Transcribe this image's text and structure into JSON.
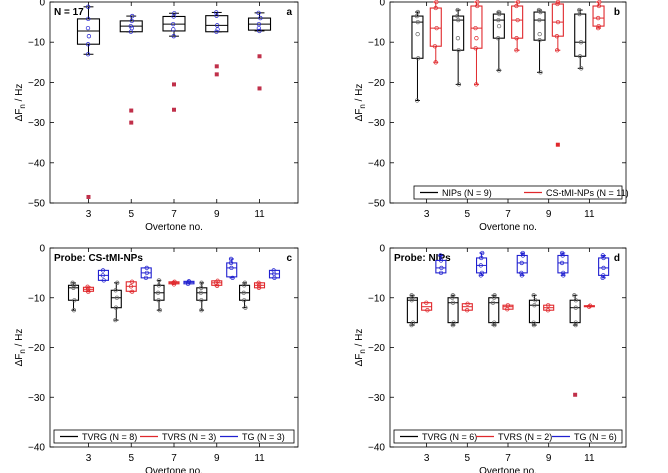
{
  "chart_data": [
    {
      "id": "a",
      "type": "box",
      "panel_label": "a",
      "annotation": "N = 17",
      "title": "",
      "xlabel": "Overtone no.",
      "ylabel_main": "ΔF",
      "ylabel_sub": "n",
      "ylabel_unit": " / Hz",
      "ylim": [
        -50,
        0
      ],
      "yticks": [
        0,
        -10,
        -20,
        -30,
        -40,
        -50
      ],
      "xticks": [
        "3",
        "5",
        "7",
        "9",
        "11"
      ],
      "legend": [],
      "series": [
        {
          "name": "all",
          "color": "#000000",
          "point_color": "#2020d0",
          "boxes": [
            {
              "x": 3,
              "q1": -10.5,
              "median": -7.2,
              "q3": -4.2,
              "wlo": -13,
              "whi": -1.2,
              "outliers": [
                -48.5
              ],
              "points": [
                -1.2,
                -4.2,
                -6.5,
                -8.5,
                -10.5,
                -13
              ]
            },
            {
              "x": 5,
              "q1": -7.4,
              "median": -6,
              "q3": -4.7,
              "wlo": -7.4,
              "whi": -3.5,
              "outliers": [
                -27,
                -30
              ],
              "points": [
                -3.5,
                -4.7,
                -6,
                -6.5,
                -7.4
              ]
            },
            {
              "x": 7,
              "q1": -7.2,
              "median": -5.5,
              "q3": -3.6,
              "wlo": -8.5,
              "whi": -2.8,
              "outliers": [
                -20.5,
                -26.8
              ],
              "points": [
                -2.8,
                -3.6,
                -5.5,
                -6.8,
                -8.5
              ]
            },
            {
              "x": 9,
              "q1": -7.4,
              "median": -5.8,
              "q3": -3.4,
              "wlo": -7.4,
              "whi": -2.6,
              "outliers": [
                -16,
                -18
              ],
              "points": [
                -2.6,
                -3.4,
                -5.8,
                -6.8,
                -7.4
              ]
            },
            {
              "x": 11,
              "q1": -7,
              "median": -5.5,
              "q3": -4,
              "wlo": -7.2,
              "whi": -2.7,
              "outliers": [
                -13.5,
                -21.5
              ],
              "points": [
                -2.7,
                -4,
                -5.5,
                -6.5,
                -7.2
              ]
            }
          ]
        }
      ]
    },
    {
      "id": "b",
      "type": "box",
      "panel_label": "b",
      "annotation": "",
      "title": "",
      "xlabel": "Overtone no.",
      "ylabel_main": "ΔF",
      "ylabel_sub": "n",
      "ylabel_unit": " / Hz",
      "ylim": [
        -50,
        0
      ],
      "yticks": [
        0,
        -10,
        -20,
        -30,
        -40,
        -50
      ],
      "xticks": [
        "3",
        "5",
        "7",
        "9",
        "11"
      ],
      "legend": [
        {
          "label": "NIPs (N = 9)",
          "color": "#000000"
        },
        {
          "label": "CS-tMI-NPs (N = 11)",
          "color": "#e0282c"
        }
      ],
      "series": [
        {
          "name": "NIPs",
          "color": "#000000",
          "boxes": [
            {
              "x": 2.55,
              "q1": -14,
              "median": -5,
              "q3": -3.5,
              "wlo": -24.5,
              "whi": -2.5,
              "outliers": [],
              "points": [
                -2.5,
                -3.5,
                -5,
                -8,
                -14,
                -24.5
              ]
            },
            {
              "x": 4.55,
              "q1": -12,
              "median": -4.5,
              "q3": -3.5,
              "wlo": -20.5,
              "whi": -2,
              "outliers": [],
              "points": [
                -2,
                -3.5,
                -4.5,
                -9,
                -12,
                -20.5
              ]
            },
            {
              "x": 6.55,
              "q1": -9,
              "median": -4.5,
              "q3": -3,
              "wlo": -17,
              "whi": -2.5,
              "outliers": [],
              "points": [
                -2.5,
                -3,
                -4.5,
                -6,
                -9,
                -17
              ]
            },
            {
              "x": 8.55,
              "q1": -9.5,
              "median": -4.5,
              "q3": -2.5,
              "wlo": -17.5,
              "whi": -2,
              "outliers": [],
              "points": [
                -2,
                -2.5,
                -4.5,
                -8,
                -9.5,
                -17.5
              ]
            },
            {
              "x": 10.55,
              "q1": -13.5,
              "median": -10,
              "q3": -3,
              "wlo": -16.5,
              "whi": -2,
              "outliers": [],
              "points": [
                -2,
                -3,
                -10,
                -13.5,
                -16.5
              ]
            }
          ]
        },
        {
          "name": "CS-tMI-NPs",
          "color": "#e0282c",
          "boxes": [
            {
              "x": 3.45,
              "q1": -11,
              "median": -6.5,
              "q3": -1.5,
              "wlo": -15,
              "whi": 0,
              "outliers": [],
              "points": [
                0,
                -1.5,
                -6.5,
                -11,
                -15
              ]
            },
            {
              "x": 5.45,
              "q1": -11.5,
              "median": -6.5,
              "q3": -1,
              "wlo": -20.5,
              "whi": 0,
              "outliers": [],
              "points": [
                0,
                -1,
                -6.5,
                -9,
                -11.5,
                -20.5
              ]
            },
            {
              "x": 7.45,
              "q1": -9,
              "median": -4.5,
              "q3": -1,
              "wlo": -12,
              "whi": 0,
              "outliers": [],
              "points": [
                0,
                -1,
                -4.5,
                -9,
                -12
              ]
            },
            {
              "x": 9.45,
              "q1": -8.5,
              "median": -5,
              "q3": -0.5,
              "wlo": -12,
              "whi": 0,
              "outliers": [
                -35.5
              ],
              "points": [
                0,
                -0.5,
                -5,
                -8.5,
                -12
              ]
            },
            {
              "x": 11.45,
              "q1": -6,
              "median": -4,
              "q3": -1,
              "wlo": -6.5,
              "whi": 0,
              "outliers": [],
              "points": [
                0,
                -1,
                -4,
                -6,
                -6.5
              ]
            }
          ]
        }
      ]
    },
    {
      "id": "c",
      "type": "box",
      "panel_label": "c",
      "annotation": "Probe: CS-tMI-NPs",
      "title": "",
      "xlabel": "Overtone no.",
      "ylabel_main": "ΔF",
      "ylabel_sub": "n",
      "ylabel_unit": " / Hz",
      "ylim": [
        -40,
        0
      ],
      "yticks": [
        0,
        -10,
        -20,
        -30,
        -40
      ],
      "xticks": [
        "3",
        "5",
        "7",
        "9",
        "11"
      ],
      "legend": [
        {
          "label": "TVRG (N = 8)",
          "color": "#000000"
        },
        {
          "label": "TVRS (N = 3)",
          "color": "#e0282c"
        },
        {
          "label": "TG (N = 3)",
          "color": "#2020d0"
        }
      ],
      "series": [
        {
          "name": "TVRG",
          "color": "#000000",
          "boxes": [
            {
              "x": 2.3,
              "q1": -10.5,
              "median": -8,
              "q3": -7.5,
              "wlo": -12.5,
              "whi": -7,
              "outliers": [],
              "points": [
                -7,
                -7.5,
                -8,
                -10.5,
                -12.5
              ]
            },
            {
              "x": 4.3,
              "q1": -12,
              "median": -10,
              "q3": -8.5,
              "wlo": -14.5,
              "whi": -7,
              "outliers": [],
              "points": [
                -7,
                -8.5,
                -10,
                -12,
                -14.5
              ]
            },
            {
              "x": 6.3,
              "q1": -10.5,
              "median": -9,
              "q3": -7.5,
              "wlo": -12.5,
              "whi": -6.5,
              "outliers": [],
              "points": [
                -6.5,
                -7.5,
                -9,
                -10.5,
                -12.5
              ]
            },
            {
              "x": 8.3,
              "q1": -10.5,
              "median": -9,
              "q3": -8,
              "wlo": -12.5,
              "whi": -7,
              "outliers": [],
              "points": [
                -7,
                -8,
                -9,
                -10.5,
                -12.5
              ]
            },
            {
              "x": 10.3,
              "q1": -10.5,
              "median": -9,
              "q3": -7.5,
              "wlo": -12,
              "whi": -7,
              "outliers": [],
              "points": [
                -7,
                -7.5,
                -9,
                -10.5,
                -12
              ]
            }
          ]
        },
        {
          "name": "TVRS",
          "color": "#e0282c",
          "boxes": [
            {
              "x": 3.0,
              "q1": -8.7,
              "median": -8.3,
              "q3": -7.9,
              "wlo": -8.8,
              "whi": -7.8,
              "outliers": [],
              "points": [
                -7.8,
                -8.3,
                -8.8
              ]
            },
            {
              "x": 5.0,
              "q1": -8.7,
              "median": -7.7,
              "q3": -6.8,
              "wlo": -8.8,
              "whi": -6.8,
              "outliers": [],
              "points": [
                -6.8,
                -7.7,
                -8.8
              ]
            },
            {
              "x": 7.0,
              "q1": -7.2,
              "median": -7,
              "q3": -6.8,
              "wlo": -7.3,
              "whi": -6.8,
              "outliers": [],
              "points": [
                -6.8,
                -7,
                -7.3
              ]
            },
            {
              "x": 9.0,
              "q1": -7.5,
              "median": -7,
              "q3": -6.6,
              "wlo": -7.6,
              "whi": -6.6,
              "outliers": [],
              "points": [
                -6.6,
                -7,
                -7.6
              ]
            },
            {
              "x": 11.0,
              "q1": -8,
              "median": -7.5,
              "q3": -7,
              "wlo": -8,
              "whi": -7,
              "outliers": [],
              "points": [
                -7,
                -7.5,
                -8
              ]
            }
          ]
        },
        {
          "name": "TG",
          "color": "#2020d0",
          "boxes": [
            {
              "x": 3.7,
              "q1": -6.5,
              "median": -5.5,
              "q3": -4.5,
              "wlo": -6.5,
              "whi": -4.5,
              "outliers": [],
              "points": [
                -4.5,
                -5.5,
                -6.5
              ]
            },
            {
              "x": 5.7,
              "q1": -6,
              "median": -5,
              "q3": -4,
              "wlo": -6,
              "whi": -4,
              "outliers": [],
              "points": [
                -4,
                -5,
                -6
              ]
            },
            {
              "x": 7.7,
              "q1": -7.2,
              "median": -6.9,
              "q3": -6.7,
              "wlo": -7.2,
              "whi": -6.7,
              "outliers": [],
              "points": [
                -6.7,
                -6.9,
                -7.2
              ]
            },
            {
              "x": 9.7,
              "q1": -5.8,
              "median": -4,
              "q3": -3,
              "wlo": -6,
              "whi": -2.2,
              "outliers": [],
              "points": [
                -2.2,
                -3,
                -4,
                -6
              ]
            },
            {
              "x": 11.7,
              "q1": -6,
              "median": -5.2,
              "q3": -4.5,
              "wlo": -6,
              "whi": -4.5,
              "outliers": [],
              "points": [
                -4.5,
                -5.2,
                -6
              ]
            }
          ]
        }
      ]
    },
    {
      "id": "d",
      "type": "box",
      "panel_label": "d",
      "annotation": "Probe: NIPs",
      "title": "",
      "xlabel": "Overtone no.",
      "ylabel_main": "ΔF",
      "ylabel_sub": "n",
      "ylabel_unit": " / Hz",
      "ylim": [
        -40,
        0
      ],
      "yticks": [
        0,
        -10,
        -20,
        -30,
        -40
      ],
      "xticks": [
        "3",
        "5",
        "7",
        "9",
        "11"
      ],
      "legend": [
        {
          "label": "TVRG (N = 6)",
          "color": "#000000"
        },
        {
          "label": "TVRS (N = 2)",
          "color": "#e0282c"
        },
        {
          "label": "TG (N = 6)",
          "color": "#2020d0"
        }
      ],
      "series": [
        {
          "name": "TVRG",
          "color": "#000000",
          "boxes": [
            {
              "x": 2.3,
              "q1": -15,
              "median": -10.5,
              "q3": -10,
              "wlo": -15.5,
              "whi": -9.5,
              "outliers": [],
              "points": [
                -9.5,
                -10,
                -10.5,
                -15,
                -15.5
              ]
            },
            {
              "x": 4.3,
              "q1": -15,
              "median": -11,
              "q3": -10,
              "wlo": -15.5,
              "whi": -9.5,
              "outliers": [],
              "points": [
                -9.5,
                -10,
                -11,
                -15,
                -15.5
              ]
            },
            {
              "x": 6.3,
              "q1": -15,
              "median": -11,
              "q3": -10,
              "wlo": -15.5,
              "whi": -9.5,
              "outliers": [],
              "points": [
                -9.5,
                -10,
                -11,
                -15,
                -15.5
              ]
            },
            {
              "x": 8.3,
              "q1": -15,
              "median": -11.5,
              "q3": -10.5,
              "wlo": -15.5,
              "whi": -9.5,
              "outliers": [],
              "points": [
                -9.5,
                -10.5,
                -11.5,
                -15,
                -15.5
              ]
            },
            {
              "x": 10.3,
              "q1": -15,
              "median": -12,
              "q3": -10.5,
              "wlo": -15.5,
              "whi": -9.5,
              "outliers": [
                -29.5
              ],
              "points": [
                -9.5,
                -10.5,
                -12,
                -15,
                -15.5
              ]
            }
          ]
        },
        {
          "name": "TVRS",
          "color": "#e0282c",
          "boxes": [
            {
              "x": 3.0,
              "q1": -12.5,
              "median": -11.8,
              "q3": -11,
              "wlo": -12.5,
              "whi": -11,
              "outliers": [],
              "points": [
                -11,
                -12.5
              ]
            },
            {
              "x": 5.0,
              "q1": -12.5,
              "median": -11.8,
              "q3": -11.2,
              "wlo": -12.5,
              "whi": -11.2,
              "outliers": [],
              "points": [
                -11.2,
                -12.5
              ]
            },
            {
              "x": 7.0,
              "q1": -12.3,
              "median": -11.8,
              "q3": -11.5,
              "wlo": -12.3,
              "whi": -11.5,
              "outliers": [],
              "points": [
                -11.5,
                -12.3
              ]
            },
            {
              "x": 9.0,
              "q1": -12.5,
              "median": -12,
              "q3": -11.5,
              "wlo": -12.5,
              "whi": -11.5,
              "outliers": [],
              "points": [
                -11.5,
                -12.5
              ]
            },
            {
              "x": 11.0,
              "q1": -11.8,
              "median": -11.7,
              "q3": -11.6,
              "wlo": -11.8,
              "whi": -11.6,
              "outliers": [],
              "points": [
                -11.6,
                -11.8
              ]
            }
          ]
        },
        {
          "name": "TG",
          "color": "#2020d0",
          "boxes": [
            {
              "x": 3.7,
              "q1": -5,
              "median": -4,
              "q3": -2.5,
              "wlo": -5,
              "whi": -1.5,
              "outliers": [],
              "points": [
                -1.5,
                -2.5,
                -4,
                -5
              ]
            },
            {
              "x": 5.7,
              "q1": -5,
              "median": -3.5,
              "q3": -2,
              "wlo": -5.5,
              "whi": -1,
              "outliers": [],
              "points": [
                -1,
                -2,
                -3.5,
                -5,
                -5.5
              ]
            },
            {
              "x": 7.7,
              "q1": -5,
              "median": -3,
              "q3": -1.5,
              "wlo": -5.5,
              "whi": -1,
              "outliers": [],
              "points": [
                -1,
                -1.5,
                -3,
                -5,
                -5.5
              ]
            },
            {
              "x": 9.7,
              "q1": -5,
              "median": -3,
              "q3": -1.5,
              "wlo": -5.5,
              "whi": -1,
              "outliers": [],
              "points": [
                -1,
                -1.5,
                -3,
                -5,
                -5.5
              ]
            },
            {
              "x": 11.7,
              "q1": -5.5,
              "median": -4,
              "q3": -2,
              "wlo": -6,
              "whi": -1.5,
              "outliers": [],
              "points": [
                -1.5,
                -2,
                -4,
                -5.5,
                -6
              ]
            }
          ]
        }
      ]
    }
  ]
}
